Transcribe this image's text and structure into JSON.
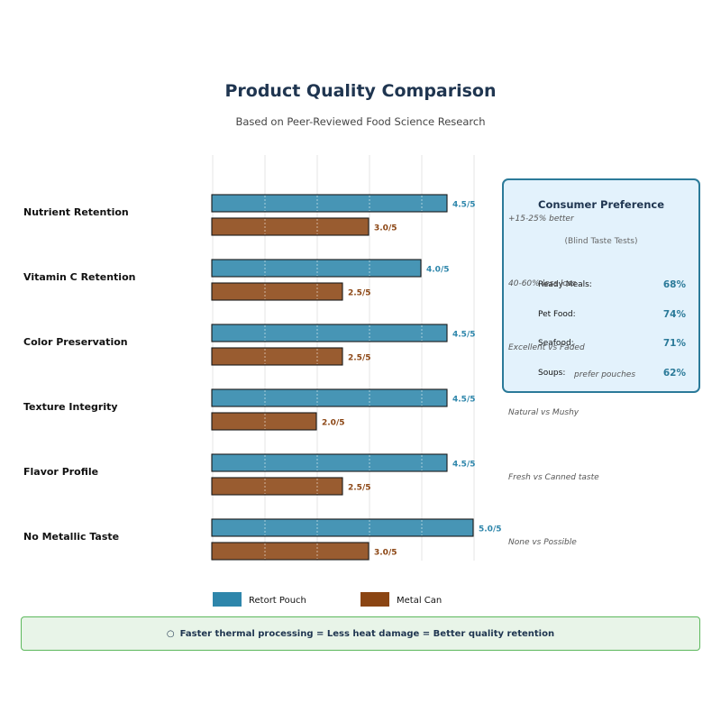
{
  "chart_data": {
    "type": "bar",
    "orientation": "horizontal",
    "title": "Product Quality Comparison",
    "subtitle": "Based on Peer-Reviewed Food Science Research",
    "categories": [
      "Nutrient Retention",
      "Vitamin C Retention",
      "Color Preservation",
      "Texture Integrity",
      "Flavor Profile",
      "No Metallic Taste"
    ],
    "xlim": [
      0,
      5
    ],
    "grid": true,
    "legend_position": "bottom",
    "series": [
      {
        "name": "Retort Pouch",
        "color": "#2e86ab",
        "values": [
          4.5,
          4.0,
          4.5,
          4.5,
          4.5,
          5.0
        ],
        "labels": [
          "4.5/5",
          "4.0/5",
          "4.5/5",
          "4.5/5",
          "4.5/5",
          "5.0/5"
        ]
      },
      {
        "name": "Metal Can",
        "color": "#8b4513",
        "values": [
          3.0,
          2.5,
          2.5,
          2.0,
          2.5,
          3.0
        ],
        "labels": [
          "3.0/5",
          "2.5/5",
          "2.5/5",
          "2.0/5",
          "2.5/5",
          "3.0/5"
        ]
      }
    ],
    "annotations": [
      "+15-25% better",
      "40-60% less loss",
      "Excellent vs Faded",
      "Natural vs Mushy",
      "Fresh vs Canned taste",
      "None vs Possible"
    ]
  },
  "consumer_panel": {
    "title": "Consumer Preference",
    "subtitle": "(Blind Taste Tests)",
    "rows": [
      {
        "label": "Ready Meals:",
        "value": "68%"
      },
      {
        "label": "Pet Food:",
        "value": "74%"
      },
      {
        "label": "Seafood:",
        "value": "71%"
      },
      {
        "label": "Soups:",
        "value": "62%"
      }
    ],
    "footnote": "prefer pouches"
  },
  "footer": {
    "icon": "lightbulb-icon",
    "text": "Faster thermal processing = Less heat damage = Better quality retention"
  }
}
